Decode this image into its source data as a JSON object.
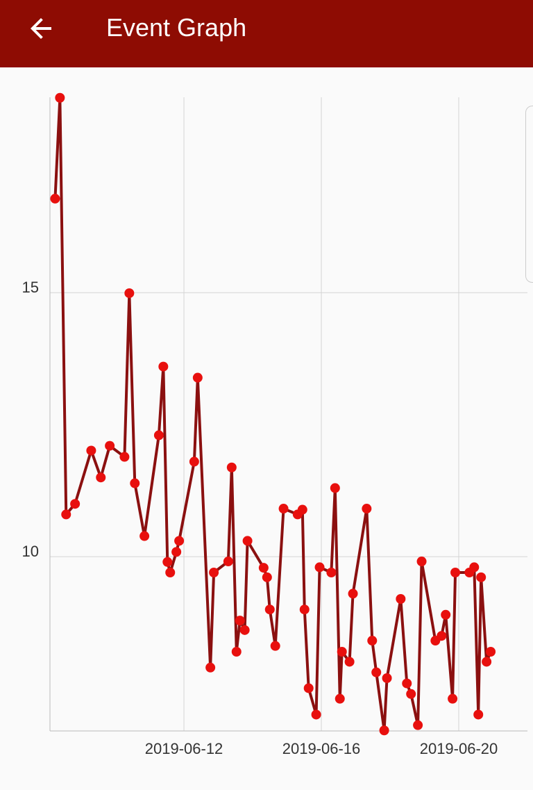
{
  "header": {
    "title": "Event Graph"
  },
  "chart_data": {
    "type": "line",
    "x": [
      8.25,
      8.39,
      8.57,
      8.83,
      9.3,
      9.58,
      9.84,
      10.27,
      10.41,
      10.57,
      10.85,
      11.27,
      11.4,
      11.52,
      11.6,
      11.78,
      11.86,
      12.3,
      12.4,
      12.77,
      12.87,
      13.29,
      13.39,
      13.53,
      13.63,
      13.77,
      13.85,
      14.32,
      14.42,
      14.5,
      14.66,
      14.9,
      15.31,
      15.45,
      15.51,
      15.63,
      15.85,
      15.95,
      16.29,
      16.4,
      16.54,
      16.6,
      16.82,
      16.92,
      17.32,
      17.48,
      17.6,
      17.83,
      17.91,
      18.31,
      18.49,
      18.61,
      18.81,
      18.92,
      19.32,
      19.5,
      19.62,
      19.82,
      19.9,
      20.31,
      20.45,
      20.57,
      20.65,
      20.81,
      20.93
    ],
    "values": [
      16.78,
      18.69,
      10.8,
      11.0,
      12.01,
      11.5,
      12.1,
      11.89,
      14.99,
      11.39,
      10.39,
      12.3,
      13.6,
      9.9,
      9.7,
      10.09,
      10.3,
      11.8,
      13.39,
      7.9,
      9.7,
      9.91,
      11.69,
      8.2,
      8.79,
      8.61,
      10.3,
      9.79,
      9.61,
      9.0,
      8.31,
      10.91,
      10.8,
      10.89,
      9.0,
      7.51,
      7.01,
      9.8,
      9.7,
      11.3,
      7.31,
      8.2,
      8.01,
      9.3,
      10.91,
      8.41,
      7.81,
      6.71,
      7.7,
      9.2,
      7.6,
      7.4,
      6.81,
      9.91,
      8.41,
      8.5,
      8.9,
      7.31,
      9.7,
      9.7,
      9.8,
      7.01,
      9.61,
      8.01,
      8.2
    ],
    "color": "#8b1010",
    "marker_color": "#e8100e",
    "xlim": [
      8.1,
      22
    ],
    "ylim": [
      6.7,
      18.7
    ],
    "xticks": [
      {
        "value": 12,
        "label": "2019-06-12"
      },
      {
        "value": 16,
        "label": "2019-06-16"
      },
      {
        "value": 20,
        "label": "2019-06-20"
      }
    ],
    "yticks": [
      10,
      15
    ],
    "grid": true
  }
}
